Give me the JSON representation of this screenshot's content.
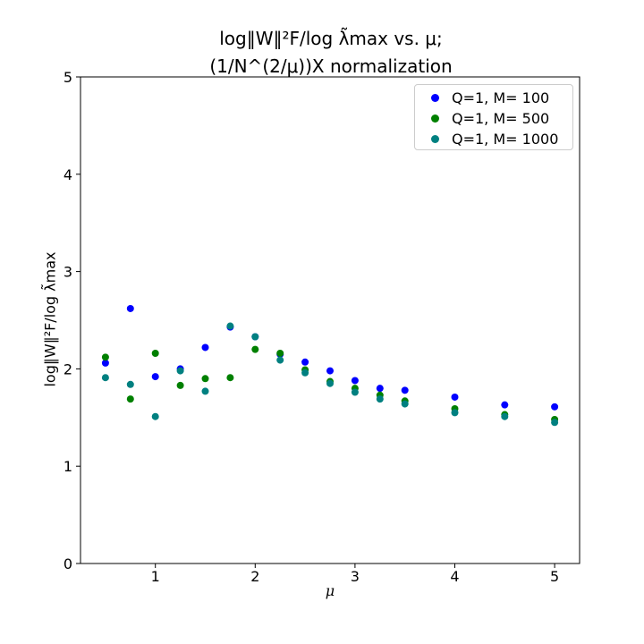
{
  "chart_data": {
    "type": "scatter",
    "title_line1": "log‖W‖²F/log λ̃max vs. μ;",
    "title_line2": "(1/N^(2/μ))X normalization",
    "xlabel": "μ",
    "ylabel": "log‖W‖²F/log λ̃max",
    "xlim": [
      0.25,
      5.25
    ],
    "ylim": [
      0,
      5
    ],
    "xticks": [
      1,
      2,
      3,
      4,
      5
    ],
    "yticks": [
      0,
      1,
      2,
      3,
      4,
      5
    ],
    "grid": false,
    "legend_position": "top-right",
    "series": [
      {
        "name": "Q=1, M= 100",
        "color": "#0000ff",
        "x": [
          0.5,
          0.75,
          1.0,
          1.25,
          1.5,
          1.75,
          2.0,
          2.25,
          2.5,
          2.75,
          3.0,
          3.25,
          3.5,
          4.0,
          4.5,
          5.0
        ],
        "y": [
          2.06,
          2.62,
          1.92,
          2.0,
          2.22,
          2.43,
          2.33,
          2.15,
          2.07,
          1.98,
          1.88,
          1.8,
          1.78,
          1.71,
          1.63,
          1.61
        ]
      },
      {
        "name": "Q=1, M= 500",
        "color": "#008000",
        "x": [
          0.5,
          0.75,
          1.0,
          1.25,
          1.5,
          1.75,
          2.0,
          2.25,
          2.5,
          2.75,
          3.0,
          3.25,
          3.5,
          4.0,
          4.5,
          5.0
        ],
        "y": [
          2.12,
          1.69,
          2.16,
          1.83,
          1.9,
          1.91,
          2.2,
          2.16,
          1.99,
          1.87,
          1.8,
          1.73,
          1.67,
          1.59,
          1.53,
          1.48
        ]
      },
      {
        "name": "Q=1, M= 1000",
        "color": "#008080",
        "x": [
          0.5,
          0.75,
          1.0,
          1.25,
          1.5,
          1.75,
          2.0,
          2.25,
          2.5,
          2.75,
          3.0,
          3.25,
          3.5,
          4.0,
          4.5,
          5.0
        ],
        "y": [
          1.91,
          1.84,
          1.51,
          1.98,
          1.77,
          2.44,
          2.33,
          2.09,
          1.96,
          1.85,
          1.76,
          1.69,
          1.64,
          1.55,
          1.51,
          1.45
        ]
      }
    ]
  }
}
